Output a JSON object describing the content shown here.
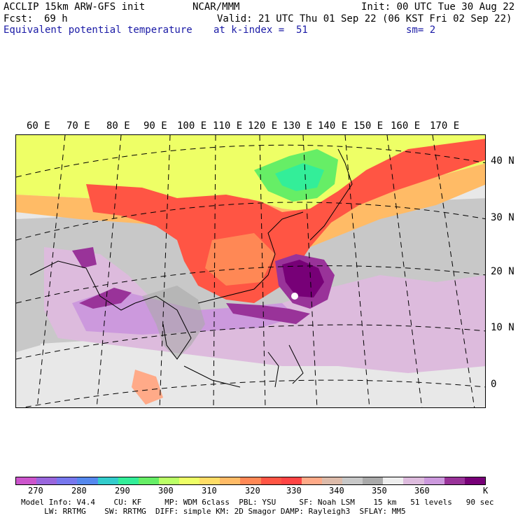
{
  "header": {
    "model": "ACCLIP 15km ARW-GFS init",
    "org": "NCAR/MMM",
    "init": "Init: 00 UTC Tue 30 Aug 22",
    "fcst_label": "Fcst:",
    "fcst_value": "69 h",
    "valid": "Valid: 21 UTC Thu 01 Sep 22 (06 KST Fri 02 Sep 22)",
    "field": "Equivalent potential temperature",
    "level": "at k-index =  51",
    "smooth": "sm= 2"
  },
  "map": {
    "lon_labels": [
      "60 E",
      "70 E",
      "80 E",
      "90 E",
      "100 E",
      "110 E",
      "120 E",
      "130 E",
      "140 E",
      "150 E",
      "160 E",
      "170 E"
    ],
    "lat_labels": [
      "40 N",
      "30 N",
      "20 N",
      "10 N",
      "0"
    ]
  },
  "colorbar": {
    "unit": "K",
    "tick_labels": [
      "270",
      "280",
      "290",
      "300",
      "310",
      "320",
      "330",
      "340",
      "350",
      "360"
    ],
    "colors": [
      "#cc55cc",
      "#9966dd",
      "#7777ee",
      "#5588ee",
      "#33cccc",
      "#33ee99",
      "#66ee66",
      "#bbff66",
      "#eeff66",
      "#ffdd66",
      "#ffbb66",
      "#ff8855",
      "#ff5544",
      "#ff4444",
      "#ffaa88",
      "#ddbbaa",
      "#c8c8c8",
      "#aaaaaa",
      "#eeeeee",
      "#ddbbdd",
      "#cc99dd",
      "#993399",
      "#770077"
    ]
  },
  "footer": {
    "line1": "Model Info: V4.4    CU: KF     MP: WDM 6class  PBL: YSU     SF: Noah LSM    15 km   51 levels   90 sec",
    "line2": "     LW: RRTMG    SW: RRTMG  DIFF: simple KM: 2D Smagor DAMP: Rayleigh3  SFLAY: MM5"
  }
}
